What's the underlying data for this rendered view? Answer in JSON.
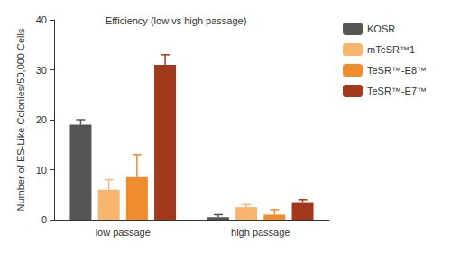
{
  "chart_data": {
    "type": "bar",
    "title": "Efficiency (low vs high passage)",
    "y_label": "Number of ES-Like Colonies/50,000 Cells",
    "categories": [
      "low passage",
      "high passage"
    ],
    "series": [
      {
        "name": "KOSR",
        "color": "#555555",
        "values": [
          19,
          0.5
        ],
        "errors": [
          1,
          0.5
        ]
      },
      {
        "name": "mTeSR™1",
        "color": "#f7b56e",
        "values": [
          6,
          2.5
        ],
        "errors": [
          2,
          0.5
        ]
      },
      {
        "name": "TeSR™-E8™",
        "color": "#f08c2e",
        "values": [
          8.5,
          1
        ],
        "errors": [
          4.5,
          1
        ]
      },
      {
        "name": "TeSR™-E7™",
        "color": "#a2391c",
        "values": [
          31,
          3.5
        ],
        "errors": [
          2,
          0.5
        ]
      }
    ],
    "ylim": [
      0,
      40
    ],
    "yticks": [
      0,
      10,
      20,
      30,
      40
    ],
    "grid": false,
    "legend": "right"
  }
}
